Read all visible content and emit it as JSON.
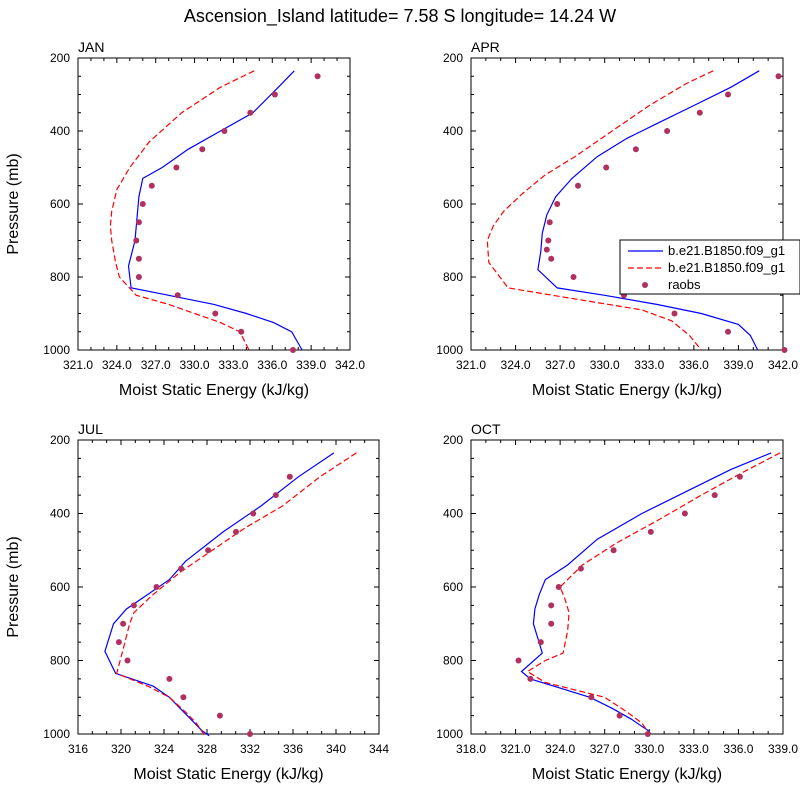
{
  "figure": {
    "title": "Ascension_Island  latitude= 7.58 S longitude= 14.24 W"
  },
  "colors": {
    "model_solid": "#0000ff",
    "model_dashed": "#ff0000",
    "raobs": "#b03060",
    "axis": "#000000",
    "background": "#ffffff"
  },
  "legend": {
    "placement": "right of APR panel",
    "entries": [
      {
        "label": "b.e21.B1850.f09_g1",
        "style": "solid-line",
        "color": "#0000ff"
      },
      {
        "label": "b.e21.B1850.f09_g1",
        "style": "dashed-line",
        "color": "#ff0000"
      },
      {
        "label": "raobs",
        "style": "dot",
        "color": "#b03060"
      }
    ]
  },
  "chart_data": [
    {
      "type": "line",
      "panel": "JAN",
      "xlabel": "Moist Static Energy (kJ/kg)",
      "ylabel": "Pressure (mb)",
      "xlim": [
        321.0,
        342.0
      ],
      "xticks": [
        "321.0",
        "324.0",
        "327.0",
        "330.0",
        "333.0",
        "336.0",
        "339.0",
        "342.0"
      ],
      "ylim": [
        200,
        1000
      ],
      "yticks": [
        "200",
        "400",
        "600",
        "800",
        "1000"
      ],
      "y_inverted": true,
      "series": [
        {
          "style": "solid",
          "color": "#0000ff",
          "x": [
            337.7,
            336.6,
            334.5,
            332.0,
            329.5,
            327.5,
            326.0,
            325.7,
            325.6,
            325.5,
            325.4,
            324.9,
            325.1,
            328.0,
            331.5,
            334.0,
            336.1,
            337.5,
            338.3
          ],
          "y": [
            235,
            275,
            350,
            400,
            450,
            500,
            530,
            580,
            620,
            660,
            700,
            770,
            830,
            850,
            875,
            900,
            925,
            950,
            1000
          ]
        },
        {
          "style": "dashed",
          "color": "#ff0000",
          "x": [
            334.6,
            332.0,
            329.0,
            326.5,
            325.0,
            324.0,
            323.6,
            323.5,
            323.6,
            323.9,
            324.2,
            325.5,
            328.0,
            330.0,
            332.0,
            333.5,
            334.2
          ],
          "y": [
            235,
            280,
            350,
            430,
            500,
            560,
            620,
            660,
            700,
            760,
            800,
            850,
            875,
            900,
            925,
            950,
            1000
          ]
        }
      ],
      "raobs": {
        "x": [
          339.5,
          336.2,
          334.3,
          332.3,
          330.6,
          328.6,
          326.7,
          326.0,
          325.7,
          325.5,
          325.7,
          325.7,
          328.7,
          331.6,
          333.6,
          337.6
        ],
        "y": [
          250,
          300,
          350,
          400,
          450,
          500,
          550,
          600,
          650,
          700,
          750,
          800,
          850,
          900,
          950,
          1000
        ]
      }
    },
    {
      "type": "line",
      "panel": "APR",
      "xlabel": "Moist Static Energy (kJ/kg)",
      "ylabel": "",
      "xlim": [
        321.0,
        342.0
      ],
      "xticks": [
        "321.0",
        "324.0",
        "327.0",
        "330.0",
        "333.0",
        "336.0",
        "339.0",
        "342.0"
      ],
      "ylim": [
        200,
        1000
      ],
      "yticks": [
        "200",
        "400",
        "600",
        "800",
        "1000"
      ],
      "y_inverted": true,
      "series": [
        {
          "style": "solid",
          "color": "#0000ff",
          "x": [
            340.4,
            338.5,
            336.0,
            333.5,
            331.5,
            329.5,
            327.8,
            326.7,
            326.1,
            325.8,
            325.7,
            325.5,
            326.8,
            330.0,
            333.5,
            336.5,
            339.0,
            339.8,
            340.3
          ],
          "y": [
            235,
            280,
            330,
            380,
            420,
            470,
            530,
            580,
            630,
            680,
            730,
            780,
            830,
            850,
            875,
            900,
            930,
            960,
            1000
          ]
        },
        {
          "style": "dashed",
          "color": "#ff0000",
          "x": [
            337.3,
            335.5,
            333.0,
            330.5,
            328.0,
            326.0,
            324.5,
            323.2,
            322.5,
            322.1,
            322.2,
            323.5,
            326.5,
            329.5,
            332.5,
            334.5,
            335.7,
            336.5
          ],
          "y": [
            235,
            270,
            330,
            400,
            470,
            520,
            570,
            620,
            660,
            700,
            760,
            830,
            850,
            870,
            890,
            920,
            960,
            1000
          ]
        }
      ],
      "raobs": {
        "x": [
          341.7,
          338.3,
          336.4,
          334.2,
          332.1,
          330.1,
          328.2,
          326.8,
          326.3,
          326.2,
          326.1,
          326.4,
          327.9,
          331.3,
          334.7,
          338.3,
          342.1
        ],
        "y": [
          250,
          300,
          350,
          400,
          450,
          500,
          550,
          600,
          650,
          700,
          725,
          750,
          800,
          850,
          900,
          950,
          1000
        ]
      }
    },
    {
      "type": "line",
      "panel": "JUL",
      "xlabel": "Moist Static Energy (kJ/kg)",
      "ylabel": "Pressure (mb)",
      "xlim": [
        316,
        344
      ],
      "xticks": [
        "316",
        "320",
        "324",
        "328",
        "332",
        "336",
        "340",
        "344"
      ],
      "ylim": [
        200,
        1000
      ],
      "yticks": [
        "200",
        "400",
        "600",
        "800",
        "1000"
      ],
      "y_inverted": true,
      "series": [
        {
          "style": "solid",
          "color": "#0000ff",
          "x": [
            339.8,
            336.5,
            333.0,
            329.5,
            326.0,
            324.5,
            322.5,
            320.5,
            319.3,
            318.5,
            319.5,
            323.0,
            324.5,
            325.5,
            326.5,
            327.5,
            328.2
          ],
          "y": [
            235,
            300,
            380,
            450,
            530,
            580,
            620,
            660,
            700,
            775,
            835,
            870,
            900,
            930,
            960,
            990,
            1005
          ]
        },
        {
          "style": "dashed",
          "color": "#ff0000",
          "x": [
            341.9,
            338.5,
            335.0,
            331.5,
            328.0,
            325.5,
            323.0,
            321.2,
            320.8,
            320.2,
            319.6,
            322.5,
            324.5,
            326.0,
            327.0,
            327.8
          ],
          "y": [
            235,
            300,
            380,
            440,
            510,
            560,
            620,
            670,
            700,
            770,
            835,
            870,
            900,
            940,
            970,
            1005
          ]
        }
      ],
      "raobs": {
        "x": [
          335.7,
          334.4,
          332.3,
          330.7,
          328.1,
          325.6,
          323.3,
          321.2,
          320.2,
          319.8,
          320.6,
          324.5,
          325.8,
          329.2,
          332.0
        ],
        "y": [
          300,
          350,
          400,
          450,
          500,
          550,
          600,
          650,
          700,
          750,
          800,
          850,
          900,
          950,
          1000
        ]
      }
    },
    {
      "type": "line",
      "panel": "OCT",
      "xlabel": "Moist Static Energy (kJ/kg)",
      "ylabel": "",
      "xlim": [
        318.0,
        339.0
      ],
      "xticks": [
        "318.0",
        "321.0",
        "324.0",
        "327.0",
        "330.0",
        "333.0",
        "336.0",
        "339.0"
      ],
      "ylim": [
        200,
        1000
      ],
      "yticks": [
        "200",
        "400",
        "600",
        "800",
        "1000"
      ],
      "y_inverted": true,
      "series": [
        {
          "style": "solid",
          "color": "#0000ff",
          "x": [
            338.2,
            335.5,
            332.5,
            329.5,
            326.5,
            324.5,
            323.0,
            322.6,
            322.3,
            322.2,
            322.5,
            322.8,
            321.4,
            322.0,
            324.0,
            326.0,
            327.5,
            328.8,
            329.9,
            330.1
          ],
          "y": [
            235,
            280,
            340,
            400,
            470,
            540,
            580,
            620,
            660,
            700,
            740,
            780,
            830,
            850,
            875,
            900,
            930,
            960,
            990,
            1000
          ]
        },
        {
          "style": "dashed",
          "color": "#ff0000",
          "x": [
            338.8,
            336.2,
            333.5,
            330.5,
            327.8,
            325.5,
            324.0,
            324.3,
            324.6,
            324.5,
            324.2,
            323.0,
            321.8,
            323.0,
            325.0,
            327.0,
            328.5,
            329.5,
            330.0
          ],
          "y": [
            235,
            290,
            350,
            420,
            480,
            540,
            600,
            630,
            670,
            720,
            780,
            800,
            830,
            860,
            880,
            900,
            940,
            970,
            1000
          ]
        }
      ],
      "raobs": {
        "x": [
          336.1,
          334.4,
          332.4,
          330.1,
          327.6,
          325.4,
          323.9,
          323.4,
          323.4,
          322.7,
          321.2,
          322.0,
          326.1,
          328.0,
          329.9
        ],
        "y": [
          300,
          350,
          400,
          450,
          500,
          550,
          600,
          650,
          700,
          750,
          800,
          850,
          900,
          950,
          1000
        ]
      }
    }
  ]
}
